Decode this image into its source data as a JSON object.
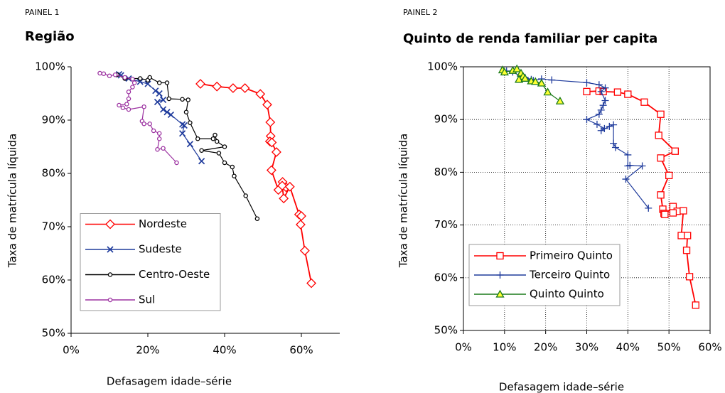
{
  "chart_data": [
    {
      "type": "scatter",
      "panel": "PAINEL 1",
      "title": "Região",
      "x_label": "Defasagem idade–série",
      "y_label": "Taxa de matrícula líquida",
      "xlim": [
        0,
        70
      ],
      "ylim": [
        50,
        100
      ],
      "xticks": [
        {
          "value": 0,
          "label": "0%"
        },
        {
          "value": 20,
          "label": "20%"
        },
        {
          "value": 40,
          "label": "40%"
        },
        {
          "value": 60,
          "label": "60%"
        }
      ],
      "yticks": [
        {
          "value": 50,
          "label": "50%"
        },
        {
          "value": 60,
          "label": "60%"
        },
        {
          "value": 70,
          "label": "70%"
        },
        {
          "value": 80,
          "label": "80%"
        },
        {
          "value": 90,
          "label": "90%"
        },
        {
          "value": 100,
          "label": "100%"
        }
      ],
      "grid": false,
      "legend": "lower left",
      "series": [
        {
          "name": "Nordeste",
          "color": "#ff0000",
          "marker": "diamond",
          "marker_fill": "#ffffff",
          "x": [
            33.7,
            38.0,
            42.2,
            45.3,
            49.3,
            51.1,
            51.9,
            52.0,
            51.8,
            52.3,
            53.5,
            52.2,
            54.0,
            55.1,
            56.0,
            55.0,
            55.4,
            57.0,
            59.4,
            60.0,
            59.8,
            60.9,
            62.6
          ],
          "values": [
            96.8,
            96.3,
            96.0,
            96.0,
            94.9,
            92.9,
            89.6,
            87.0,
            86.0,
            85.8,
            84.0,
            80.6,
            76.9,
            78.4,
            77.4,
            77.7,
            75.3,
            77.5,
            72.3,
            72.0,
            70.4,
            65.5,
            59.4
          ]
        },
        {
          "name": "Sudeste",
          "color": "#1f3b9c",
          "marker": "x",
          "marker_fill": "none",
          "x": [
            12.5,
            13.0,
            15.0,
            18.0,
            20.0,
            22.0,
            23.0,
            24.0,
            22.5,
            24.0,
            25.0,
            26.0,
            29.0,
            29.5,
            29.0,
            31.0,
            34.0
          ],
          "values": [
            98.6,
            98.4,
            97.8,
            97.2,
            96.8,
            95.5,
            95.0,
            93.8,
            93.4,
            92.0,
            91.5,
            91.0,
            89.2,
            89.0,
            87.5,
            85.5,
            82.3
          ]
        },
        {
          "name": "Centro-Oeste",
          "color": "#000000",
          "marker": "circle",
          "marker_fill": "#ffffff",
          "x": [
            12.0,
            14.0,
            18.0,
            20.0,
            20.5,
            23.0,
            25.0,
            25.5,
            29.0,
            30.5,
            30.0,
            31.0,
            33.0,
            37.0,
            37.5,
            38.0,
            40.0,
            34.0,
            38.5,
            40.0,
            42.0,
            42.5,
            45.5,
            48.5
          ],
          "values": [
            98.5,
            97.8,
            97.8,
            97.5,
            98.0,
            97.0,
            97.0,
            94.0,
            93.9,
            93.8,
            91.5,
            89.5,
            86.5,
            86.5,
            87.2,
            86.0,
            85.0,
            84.3,
            83.8,
            82.0,
            81.2,
            79.5,
            75.8,
            71.5
          ]
        },
        {
          "name": "Sul",
          "color": "#9b30a0",
          "marker": "circle",
          "marker_fill": "#ffffff",
          "x": [
            7.5,
            8.5,
            10.0,
            11.5,
            14.0,
            16.0,
            16.5,
            16.0,
            15.0,
            15.0,
            14.5,
            12.5,
            13.5,
            15.0,
            19.0,
            18.5,
            19.0,
            20.5,
            21.5,
            23.0,
            23.0,
            22.5,
            24.0,
            27.5
          ],
          "values": [
            98.8,
            98.7,
            98.3,
            98.5,
            98.0,
            97.7,
            97.0,
            96.2,
            95.3,
            94.0,
            93.0,
            92.8,
            92.3,
            92.0,
            92.5,
            89.8,
            89.3,
            89.3,
            88.0,
            87.5,
            86.5,
            84.5,
            84.7,
            82.0
          ]
        }
      ]
    },
    {
      "type": "scatter",
      "panel": "PAINEL 2",
      "title": "Quinto de renda familiar per capita",
      "x_label": "Defasagem idade–série",
      "y_label": "Taxa de matrícula líquida",
      "xlim": [
        0,
        60
      ],
      "ylim": [
        50,
        100
      ],
      "xticks": [
        {
          "value": 0,
          "label": "0%"
        },
        {
          "value": 10,
          "label": "10%"
        },
        {
          "value": 20,
          "label": "20%"
        },
        {
          "value": 30,
          "label": "30%"
        },
        {
          "value": 40,
          "label": "40%"
        },
        {
          "value": 50,
          "label": "50%"
        },
        {
          "value": 60,
          "label": "60%"
        }
      ],
      "yticks": [
        {
          "value": 50,
          "label": "50%"
        },
        {
          "value": 60,
          "label": "60%"
        },
        {
          "value": 70,
          "label": "70%"
        },
        {
          "value": 80,
          "label": "80%"
        },
        {
          "value": 90,
          "label": "90%"
        },
        {
          "value": 100,
          "label": "100%"
        }
      ],
      "grid": true,
      "legend": "lower left",
      "series": [
        {
          "name": "Primeiro Quinto",
          "color": "#ff0000",
          "marker": "square",
          "marker_fill": "#ffffff",
          "x": [
            30.0,
            33.0,
            34.0,
            37.5,
            40.0,
            44.0,
            48.0,
            47.5,
            51.5,
            48.0,
            50.0,
            48.0,
            48.5,
            48.8,
            49.0,
            51.0,
            52.0,
            51.0,
            53.5,
            53.0,
            54.5,
            54.3,
            55.0,
            56.5
          ],
          "values": [
            95.3,
            95.4,
            95.3,
            95.2,
            94.8,
            93.3,
            91.0,
            87.0,
            84.0,
            82.7,
            79.4,
            75.7,
            73.0,
            72.2,
            72.0,
            73.5,
            72.6,
            72.3,
            72.7,
            68.0,
            68.0,
            65.2,
            60.2,
            54.8
          ]
        },
        {
          "name": "Terceiro Quinto",
          "color": "#1f3b9c",
          "marker": "plus",
          "marker_fill": "none",
          "x": [
            10.5,
            12.0,
            14.0,
            15.0,
            16.5,
            17.0,
            19.0,
            21.5,
            30.0,
            33.0,
            34.5,
            33.5,
            34.5,
            34.0,
            33.5,
            33.0,
            30.0,
            32.5,
            34.3,
            33.5,
            35.5,
            36.5,
            36.5,
            37.0,
            40.0,
            40.0,
            40.5,
            43.5,
            39.5,
            45.0
          ],
          "values": [
            99.2,
            99.0,
            98.2,
            98.0,
            97.6,
            97.4,
            97.7,
            97.5,
            97.0,
            96.6,
            96.0,
            95.3,
            93.6,
            92.7,
            91.8,
            91.0,
            90.0,
            89.1,
            88.3,
            87.9,
            88.7,
            89.0,
            85.5,
            84.7,
            83.3,
            81.2,
            81.3,
            81.2,
            78.7,
            73.2
          ]
        },
        {
          "name": "Quinto Quinto",
          "color": "#1a7a1a",
          "marker": "triangle",
          "marker_fill": "#ffff33",
          "x": [
            9.5,
            10.0,
            12.0,
            13.0,
            14.0,
            14.5,
            13.5,
            15.0,
            16.5,
            17.5,
            19.0,
            20.5,
            23.5
          ],
          "values": [
            99.4,
            99.0,
            99.3,
            99.6,
            98.8,
            98.2,
            97.6,
            97.8,
            97.3,
            97.2,
            96.9,
            95.2,
            93.5
          ]
        }
      ]
    }
  ]
}
